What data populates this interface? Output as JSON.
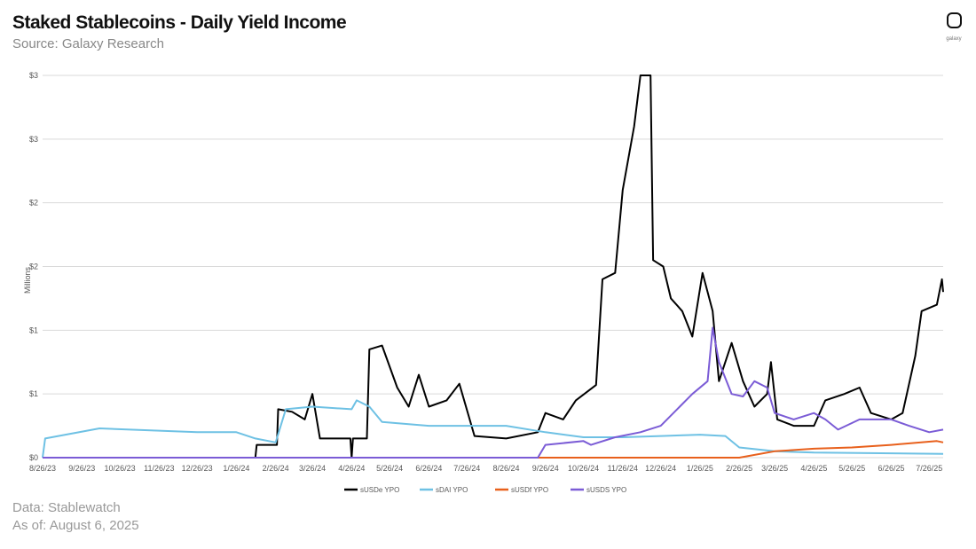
{
  "header": {
    "title": "Staked Stablecoins - Daily Yield Income",
    "subtitle": "Source: Galaxy Research",
    "logo_text": "galaxy"
  },
  "footer": {
    "data_source": "Data: Stablewatch",
    "as_of": "As of: August 6, 2025"
  },
  "chart_data": {
    "type": "line",
    "ylabel": "Millions",
    "ylim": [
      0,
      3
    ],
    "y_ticks": [
      0,
      0.5,
      1,
      1.5,
      2,
      2.5,
      3
    ],
    "y_tick_labels": [
      "$0",
      "$1",
      "$1",
      "$2",
      "$2",
      "$3",
      "$3"
    ],
    "x_tick_labels": [
      "8/26/23",
      "9/26/23",
      "10/26/23",
      "11/26/23",
      "12/26/23",
      "1/26/24",
      "2/26/24",
      "3/26/24",
      "4/26/24",
      "5/26/24",
      "6/26/24",
      "7/26/24",
      "8/26/24",
      "9/26/24",
      "10/26/24",
      "11/26/24",
      "12/26/24",
      "1/26/25",
      "2/26/25",
      "3/26/25",
      "4/26/25",
      "5/26/25",
      "6/26/25",
      "7/26/25"
    ],
    "xlim": [
      "2023-08-26",
      "2025-08-06"
    ],
    "grid": true,
    "legend": "bottom",
    "series": [
      {
        "name": "sUSDe YPO",
        "color": "#000000",
        "points": [
          [
            "2023-08-26",
            0
          ],
          [
            "2024-02-10",
            0
          ],
          [
            "2024-02-11",
            0.1
          ],
          [
            "2024-02-27",
            0.1
          ],
          [
            "2024-02-28",
            0.38
          ],
          [
            "2024-03-10",
            0.36
          ],
          [
            "2024-03-20",
            0.3
          ],
          [
            "2024-03-26",
            0.5
          ],
          [
            "2024-04-01",
            0.15
          ],
          [
            "2024-04-25",
            0.15
          ],
          [
            "2024-04-26",
            0
          ],
          [
            "2024-04-27",
            0.15
          ],
          [
            "2024-05-08",
            0.15
          ],
          [
            "2024-05-10",
            0.85
          ],
          [
            "2024-05-20",
            0.88
          ],
          [
            "2024-06-01",
            0.55
          ],
          [
            "2024-06-10",
            0.4
          ],
          [
            "2024-06-18",
            0.65
          ],
          [
            "2024-06-26",
            0.4
          ],
          [
            "2024-07-10",
            0.45
          ],
          [
            "2024-07-20",
            0.58
          ],
          [
            "2024-08-01",
            0.17
          ],
          [
            "2024-08-26",
            0.15
          ],
          [
            "2024-09-20",
            0.2
          ],
          [
            "2024-09-26",
            0.35
          ],
          [
            "2024-10-10",
            0.3
          ],
          [
            "2024-10-20",
            0.45
          ],
          [
            "2024-11-05",
            0.57
          ],
          [
            "2024-11-10",
            1.4
          ],
          [
            "2024-11-20",
            1.45
          ],
          [
            "2024-11-26",
            2.1
          ],
          [
            "2024-12-05",
            2.6
          ],
          [
            "2024-12-10",
            3.0
          ],
          [
            "2024-12-18",
            3.0
          ],
          [
            "2024-12-20",
            1.55
          ],
          [
            "2024-12-28",
            1.5
          ],
          [
            "2025-01-03",
            1.25
          ],
          [
            "2025-01-12",
            1.15
          ],
          [
            "2025-01-20",
            0.95
          ],
          [
            "2025-01-28",
            1.45
          ],
          [
            "2025-02-05",
            1.15
          ],
          [
            "2025-02-10",
            0.6
          ],
          [
            "2025-02-20",
            0.9
          ],
          [
            "2025-03-01",
            0.6
          ],
          [
            "2025-03-10",
            0.4
          ],
          [
            "2025-03-20",
            0.5
          ],
          [
            "2025-03-23",
            0.75
          ],
          [
            "2025-03-28",
            0.3
          ],
          [
            "2025-04-10",
            0.25
          ],
          [
            "2025-04-26",
            0.25
          ],
          [
            "2025-05-05",
            0.45
          ],
          [
            "2025-05-20",
            0.5
          ],
          [
            "2025-06-01",
            0.55
          ],
          [
            "2025-06-10",
            0.35
          ],
          [
            "2025-06-26",
            0.3
          ],
          [
            "2025-07-05",
            0.35
          ],
          [
            "2025-07-15",
            0.8
          ],
          [
            "2025-07-20",
            1.15
          ],
          [
            "2025-08-01",
            1.2
          ],
          [
            "2025-08-05",
            1.4
          ],
          [
            "2025-08-06",
            1.3
          ]
        ]
      },
      {
        "name": "sDAI YPO",
        "color": "#6ec1e4",
        "points": [
          [
            "2023-08-26",
            0
          ],
          [
            "2023-08-28",
            0.15
          ],
          [
            "2023-10-10",
            0.23
          ],
          [
            "2023-12-26",
            0.2
          ],
          [
            "2024-01-26",
            0.2
          ],
          [
            "2024-02-10",
            0.15
          ],
          [
            "2024-02-26",
            0.12
          ],
          [
            "2024-03-05",
            0.38
          ],
          [
            "2024-03-26",
            0.4
          ],
          [
            "2024-04-26",
            0.38
          ],
          [
            "2024-04-30",
            0.45
          ],
          [
            "2024-05-10",
            0.4
          ],
          [
            "2024-05-20",
            0.28
          ],
          [
            "2024-06-26",
            0.25
          ],
          [
            "2024-07-26",
            0.25
          ],
          [
            "2024-08-26",
            0.25
          ],
          [
            "2024-09-26",
            0.2
          ],
          [
            "2024-10-26",
            0.16
          ],
          [
            "2024-11-26",
            0.16
          ],
          [
            "2024-12-26",
            0.17
          ],
          [
            "2025-01-26",
            0.18
          ],
          [
            "2025-02-15",
            0.17
          ],
          [
            "2025-02-26",
            0.08
          ],
          [
            "2025-03-26",
            0.05
          ],
          [
            "2025-04-26",
            0.04
          ],
          [
            "2025-08-06",
            0.03
          ]
        ]
      },
      {
        "name": "sUSDf YPO",
        "color": "#e8601c",
        "points": [
          [
            "2023-08-26",
            0
          ],
          [
            "2025-02-26",
            0
          ],
          [
            "2025-03-26",
            0.05
          ],
          [
            "2025-04-26",
            0.07
          ],
          [
            "2025-05-26",
            0.08
          ],
          [
            "2025-06-26",
            0.1
          ],
          [
            "2025-08-01",
            0.13
          ],
          [
            "2025-08-06",
            0.12
          ]
        ]
      },
      {
        "name": "sUSDS YPO",
        "color": "#7b5cd6",
        "points": [
          [
            "2023-08-26",
            0
          ],
          [
            "2024-09-20",
            0
          ],
          [
            "2024-09-26",
            0.1
          ],
          [
            "2024-10-26",
            0.13
          ],
          [
            "2024-11-01",
            0.1
          ],
          [
            "2024-11-20",
            0.16
          ],
          [
            "2024-12-10",
            0.2
          ],
          [
            "2024-12-26",
            0.25
          ],
          [
            "2025-01-10",
            0.4
          ],
          [
            "2025-01-20",
            0.5
          ],
          [
            "2025-02-01",
            0.6
          ],
          [
            "2025-02-05",
            1.02
          ],
          [
            "2025-02-10",
            0.75
          ],
          [
            "2025-02-20",
            0.5
          ],
          [
            "2025-03-01",
            0.48
          ],
          [
            "2025-03-10",
            0.6
          ],
          [
            "2025-03-20",
            0.55
          ],
          [
            "2025-03-26",
            0.35
          ],
          [
            "2025-04-10",
            0.3
          ],
          [
            "2025-04-26",
            0.35
          ],
          [
            "2025-05-05",
            0.3
          ],
          [
            "2025-05-15",
            0.22
          ],
          [
            "2025-06-01",
            0.3
          ],
          [
            "2025-06-26",
            0.3
          ],
          [
            "2025-07-10",
            0.25
          ],
          [
            "2025-07-26",
            0.2
          ],
          [
            "2025-08-06",
            0.22
          ]
        ]
      }
    ]
  }
}
